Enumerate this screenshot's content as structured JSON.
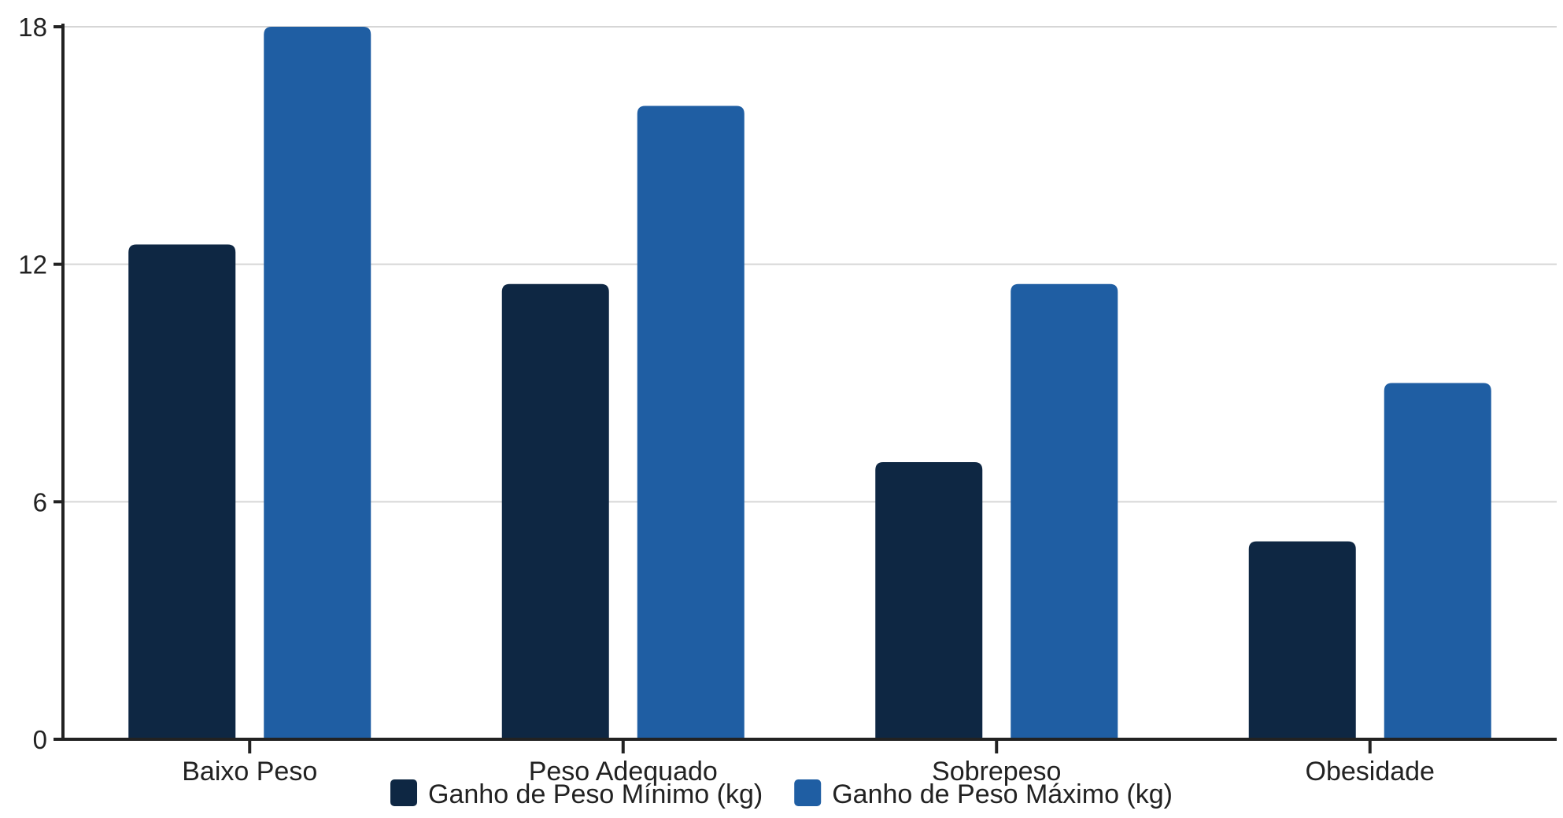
{
  "chart_data": {
    "type": "bar",
    "categories": [
      "Baixo Peso",
      "Peso Adequado",
      "Sobrepeso",
      "Obesidade"
    ],
    "series": [
      {
        "name": "Ganho de Peso Mínimo (kg)",
        "values": [
          12.5,
          11.5,
          7,
          5
        ],
        "color": "#0e2743"
      },
      {
        "name": "Ganho de Peso Máximo (kg)",
        "values": [
          18,
          16,
          11.5,
          9
        ],
        "color": "#1f5ea3"
      }
    ],
    "yticks": [
      0,
      6,
      12,
      18
    ],
    "ylim": [
      0,
      18
    ],
    "grid": true,
    "legend_position": "bottom-center",
    "title": "",
    "xlabel": "",
    "ylabel": ""
  }
}
